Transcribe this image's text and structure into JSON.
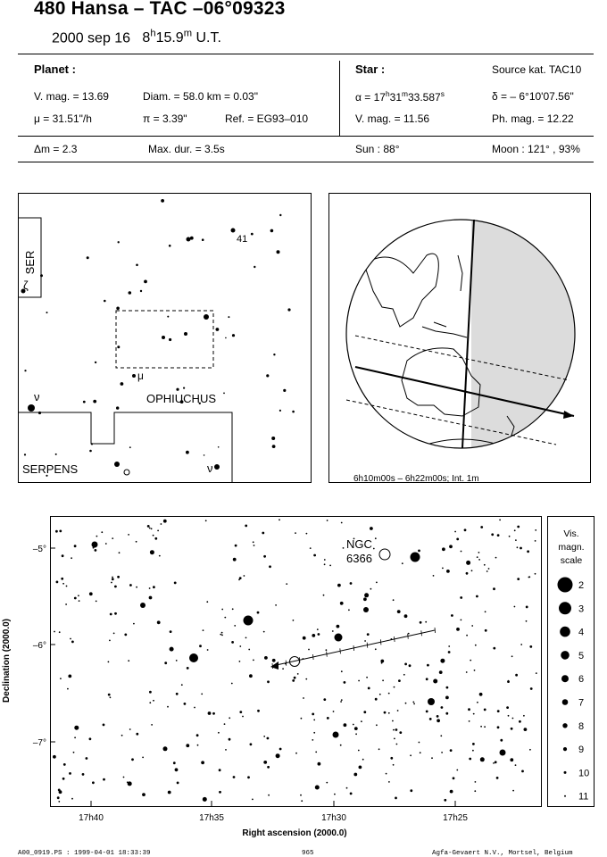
{
  "header": {
    "title": "480 Hansa  –  TAC –06°09323",
    "date_text": "2000 sep 16",
    "time_h": "8",
    "time_h_unit": "h",
    "time_m": "15.9",
    "time_m_unit": "m",
    "time_suffix": "U.T."
  },
  "planet": {
    "heading": "Planet :",
    "vmag": "V. mag. = 13.69",
    "diam": "Diam. = 58.0 km = 0.03\"",
    "mu": "μ =  31.51\"/h",
    "pi": "π =  3.39\"",
    "ref": "Ref. = EG93–010"
  },
  "star": {
    "heading": "Star :",
    "source": "Source kat.  TAC10",
    "alpha_prefix": "α = 17",
    "alpha_h": "h",
    "alpha_mid": "31",
    "alpha_m": "m",
    "alpha_val": "33.587",
    "alpha_s": "s",
    "delta": "δ = – 6°10'07.56\"",
    "vmag": "V. mag. = 11.56",
    "phmag": "Ph. mag. = 12.22"
  },
  "summary": {
    "dm": "Δm = 2.3",
    "maxdur": "Max. dur. = 3.5s",
    "sun": "Sun :  88°",
    "moon": "Moon : 121° , 93%"
  },
  "finder": {
    "label_ser": "SER",
    "label_zeta": "ζ",
    "label_41": "41",
    "label_mu": "μ",
    "label_nu1": "ν",
    "label_ophiuchus": "OPHIUCHUS",
    "label_serpens": "SERPENS",
    "label_nu2": "ν"
  },
  "globe": {
    "caption": "6h10m00s –  6h22m00s; Int.  1m"
  },
  "starchart": {
    "ngc_label_1": "NGC",
    "ngc_label_2": "6366",
    "ylabel": "Declination (2000.0)",
    "xlabel": "Right ascension (2000.0)",
    "yticks": [
      "–5°",
      "–6°",
      "–7°"
    ],
    "xticks": [
      "17h40",
      "17h35",
      "17h30",
      "17h25"
    ]
  },
  "legend": {
    "title_1": "Vis.",
    "title_2": "magn.",
    "title_3": "scale",
    "magnitudes": [
      "2",
      "3",
      "4",
      "5",
      "6",
      "7",
      "8",
      "9",
      "10",
      "11"
    ]
  },
  "footer": {
    "left": "A00_0919.PS : 1999-04-01 18:33:39",
    "center": "965",
    "right": "Agfa-Gevaert N.V., Mortsel, Belgium"
  }
}
